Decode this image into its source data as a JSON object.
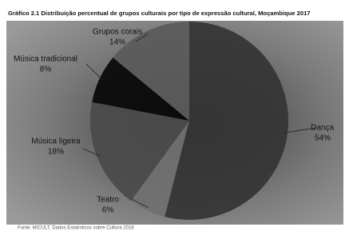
{
  "chart_data": {
    "type": "pie",
    "title": "Gráfico 2.1 Distribuição percentual de grupos culturais por tipo de expressão cultural, Moçambique 2017",
    "source": "Fonte: MICULT, Dados Estatísticos sobre Cultura 2018",
    "categories": [
      "Dança",
      "Teatro",
      "Música ligeira",
      "Música tradicional",
      "Grupos corais"
    ],
    "values": [
      54,
      6,
      18,
      8,
      14
    ],
    "value_labels": [
      "54%",
      "6%",
      "18%",
      "8%",
      "14%"
    ],
    "colors": [
      "#343434",
      "#707070",
      "#4a4a4a",
      "#080808",
      "#5a5a5a"
    ]
  }
}
